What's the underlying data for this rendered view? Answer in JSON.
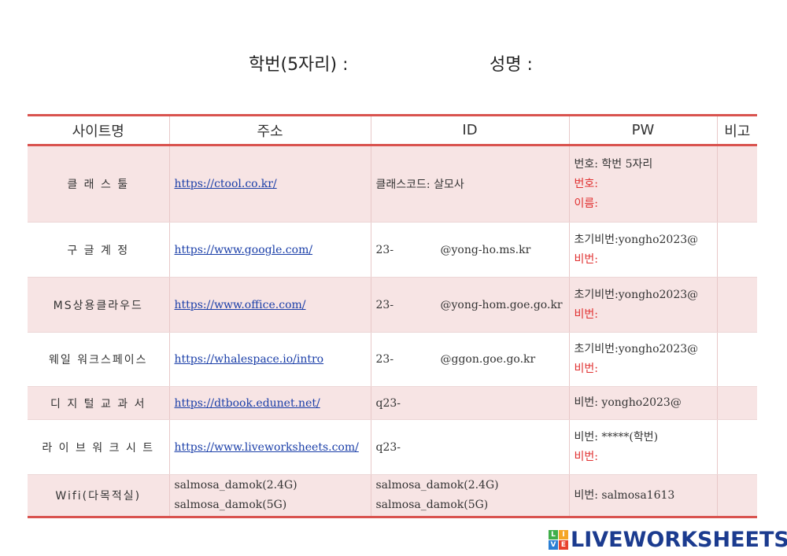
{
  "header": {
    "student_id_label": "학번(5자리) :",
    "name_label": "성명 :"
  },
  "table": {
    "columns": [
      "사이트명",
      "주소",
      "ID",
      "PW",
      "비고"
    ],
    "rows": [
      {
        "site": "클 래 스 툴",
        "url": "https://ctool.co.kr/",
        "id": [
          "클래스코드: 살모사"
        ],
        "pw": [
          {
            "t": "번호: 학번 5자리",
            "red": false
          },
          {
            "t": "번호:",
            "red": true
          },
          {
            "t": "이름:",
            "red": true
          }
        ]
      },
      {
        "site": "구 글   계 정",
        "url": "https://www.google.com/",
        "id_prefix": "23-",
        "id_suffix": "@yong-ho.ms.kr",
        "pw": [
          {
            "t": "초기비번:yongho2023@",
            "red": false
          },
          {
            "t": "비번:",
            "red": true
          }
        ]
      },
      {
        "site": "MS상용클라우드",
        "url": "https://www.office.com/",
        "id_prefix": "23-",
        "id_suffix": "@yong-hom.goe.go.kr",
        "pw": [
          {
            "t": "초기비번:yongho2023@",
            "red": false
          },
          {
            "t": "비번:",
            "red": true
          }
        ]
      },
      {
        "site": "웨일 워크스페이스",
        "url": "https://whalespace.io/intro",
        "id_prefix": "23-",
        "id_suffix": "@ggon.goe.go.kr",
        "pw": [
          {
            "t": "초기비번:yongho2023@",
            "red": false
          },
          {
            "t": "비번:",
            "red": true
          }
        ]
      },
      {
        "site": "디 지 털 교 과 서",
        "url": "https://dtbook.edunet.net/",
        "id_prefix": "q23-",
        "id_suffix": "",
        "pw": [
          {
            "t": "비번: yongho2023@",
            "red": false
          }
        ]
      },
      {
        "site": "라 이 브 워 크 시 트",
        "url": "https://www.liveworksheets.com/",
        "id_prefix": "q23-",
        "id_suffix": "",
        "pw": [
          {
            "t": "비번: *****(학번)",
            "red": false
          },
          {
            "t": "비번:",
            "red": true
          }
        ]
      },
      {
        "site": "Wifi(다목적실)",
        "addr_lines": [
          "salmosa_damok(2.4G)",
          "salmosa_damok(5G)"
        ],
        "id_lines": [
          "salmosa_damok(2.4G)",
          "salmosa_damok(5G)"
        ],
        "pw": [
          {
            "t": "비번: salmosa1613",
            "red": false
          }
        ]
      }
    ]
  },
  "logo": {
    "text": "LIVEWORKSHEETS",
    "letters": [
      "L",
      "I",
      "V",
      "E"
    ]
  },
  "colors": {
    "accent_red": "#d9534f",
    "row_pink": "#f7e4e4",
    "link": "#1a3ea8",
    "logo_blue": "#1b3b8f"
  }
}
